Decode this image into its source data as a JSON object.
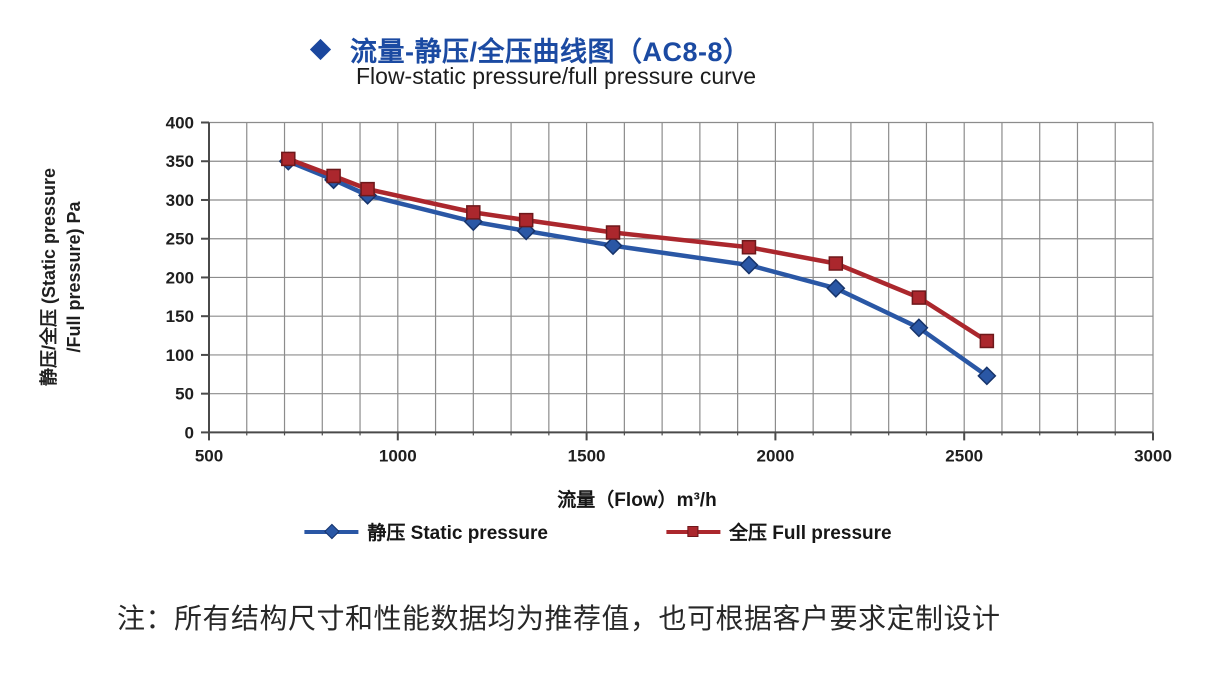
{
  "title": {
    "bullet_icon": "diamond-bullet",
    "zh": "流量-静压/全压曲线图（AC8-8）",
    "en": "Flow-static pressure/full pressure curve"
  },
  "colors": {
    "title_blue": "#1b4aa2",
    "static_blue": "#2a57a5",
    "static_blue_edge": "#17346b",
    "full_red": "#ab272d",
    "full_red_edge": "#6e181b",
    "grid_gray": "#8c8c8c",
    "axis_gray": "#4a4a4a",
    "text_dark": "#1f1f1f"
  },
  "chart_data": {
    "type": "line",
    "x": [
      710,
      830,
      920,
      1200,
      1340,
      1570,
      1930,
      2160,
      2380,
      2560
    ],
    "series": [
      {
        "name": "静压 Static pressure",
        "marker": "diamond",
        "color": "#2a57a5",
        "edge": "#17346b",
        "values": [
          350,
          326,
          306,
          272,
          260,
          241,
          216,
          186,
          135,
          73
        ]
      },
      {
        "name": "全压 Full pressure",
        "marker": "square",
        "color": "#ab272d",
        "edge": "#6e181b",
        "values": [
          353,
          331,
          314,
          284,
          274,
          258,
          239,
          218,
          174,
          118
        ]
      }
    ],
    "xlabel": "流量（Flow）m³/h",
    "ylabel_line1": "静压/全压 (Static pressure",
    "ylabel_line2": "/Full pressure) Pa",
    "xlim": [
      500,
      3000
    ],
    "ylim": [
      0,
      400
    ],
    "x_major_ticks": [
      500,
      1000,
      1500,
      2000,
      2500,
      3000
    ],
    "x_minor_step": 100,
    "y_tick_step": 50,
    "grid": true,
    "legend_position": "bottom"
  },
  "note": "注：所有结构尺寸和性能数据均为推荐值，也可根据客户要求定制设计"
}
